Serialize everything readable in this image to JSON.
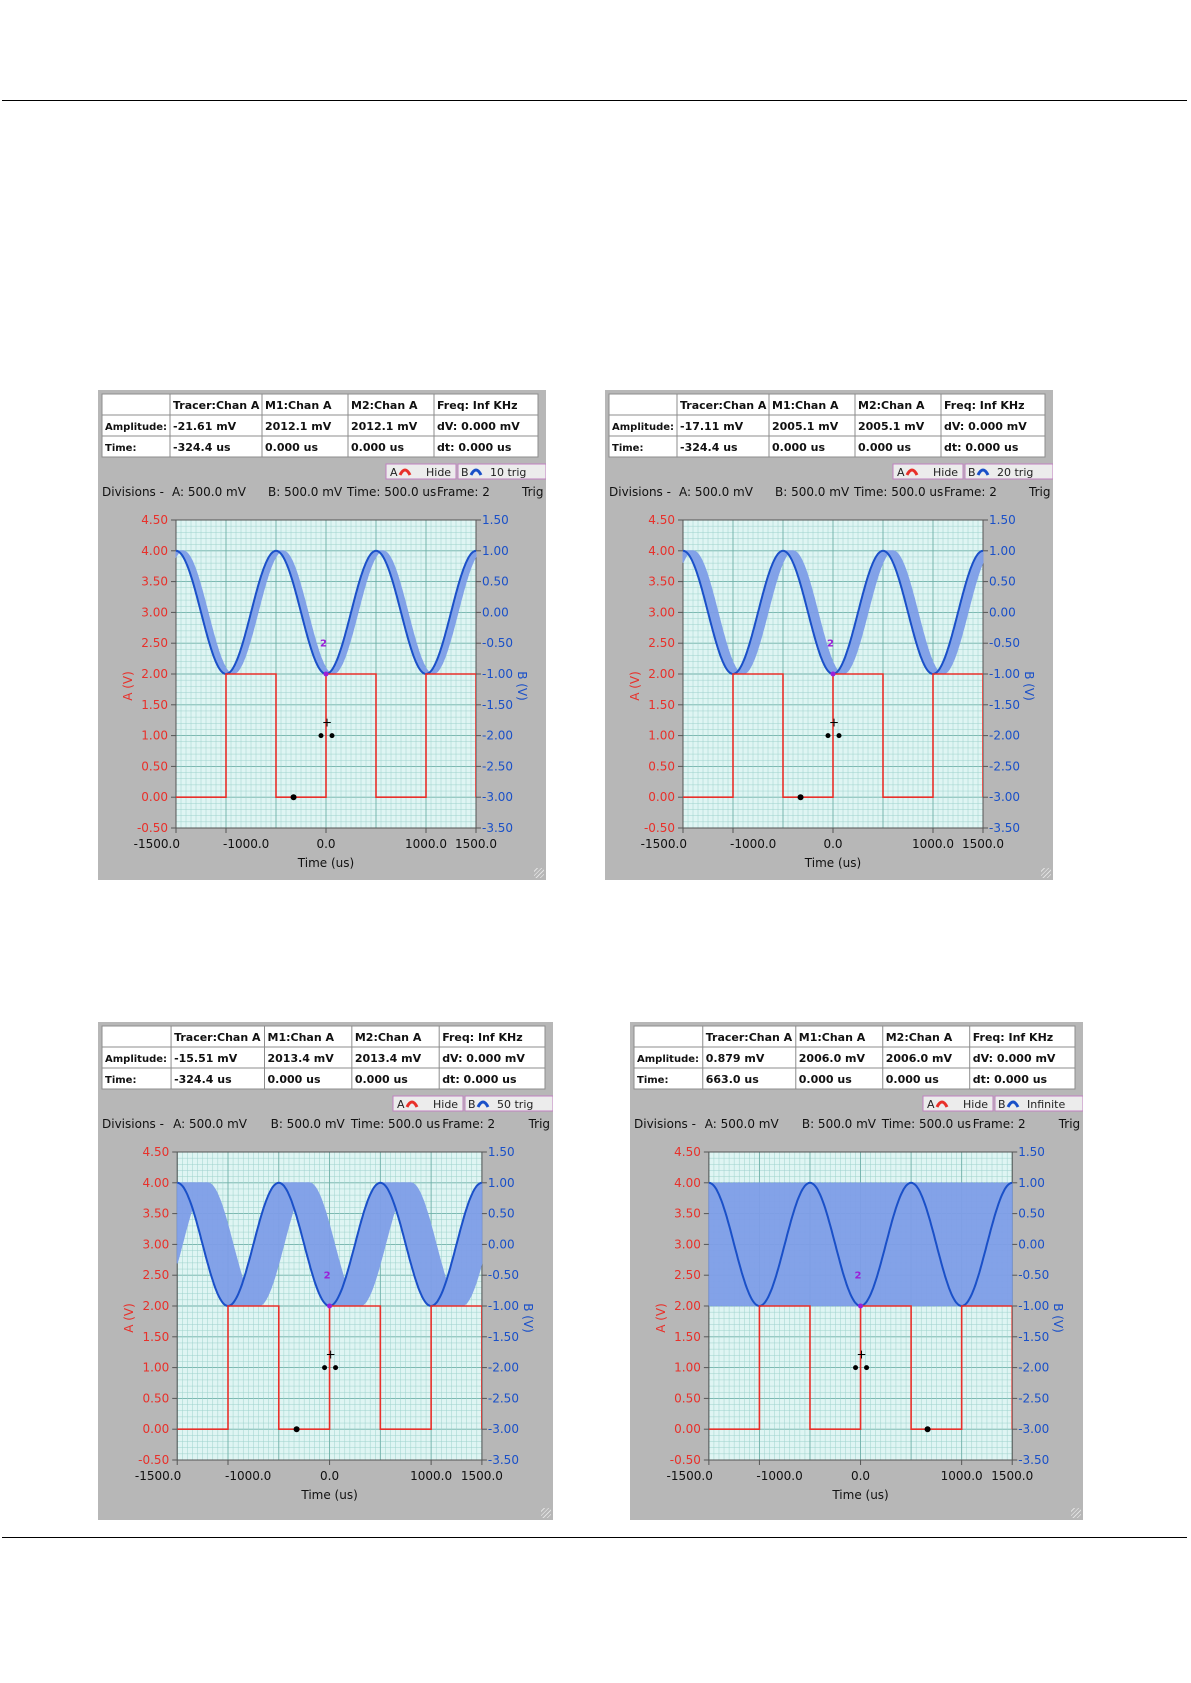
{
  "labels": {
    "tracer_hdr": "Tracer:Chan A",
    "m1_hdr": "M1:Chan A",
    "m2_hdr": "M2:Chan A",
    "freq": "Freq: Inf KHz",
    "amp_label": "Amplitude:",
    "time_label": "Time:",
    "dv": "dV: 0.000 mV",
    "dt": "dt:  0.000 us",
    "legend_a": "A",
    "legend_hide": "Hide",
    "legend_b": "B",
    "div_label": "Divisions -",
    "div_a": "A: 500.0 mV",
    "div_b": "B: 500.0 mV",
    "div_time": "Time: 500.0 us",
    "frame": "Frame: 2",
    "trig": "Trig",
    "xlabel": "Time (us)",
    "ylabel_left": "A (V)",
    "ylabel_right": "B (V)",
    "marker_label": "2",
    "x_ticks": [
      "-1500.0",
      "-1000.0",
      "0.0",
      "1000.0",
      "1500.0"
    ],
    "yl_ticks": [
      "4.50",
      "4.00",
      "3.50",
      "3.00",
      "2.50",
      "2.00",
      "1.50",
      "1.00",
      "0.50",
      "0.00",
      "-0.50"
    ],
    "yr_ticks": [
      "1.50",
      "1.00",
      "0.50",
      "0.00",
      "-0.50",
      "-1.00",
      "-1.50",
      "-2.00",
      "-2.50",
      "-3.00",
      "-3.50"
    ]
  },
  "colors": {
    "panel_bg": "#b7b7b7",
    "plot_bg": "#dff5f3",
    "grid_minor": "#9ed2cc",
    "grid_major": "#6fb0a8",
    "chan_a": "#e8302a",
    "chan_b": "#1a50c8",
    "chan_b_band": "#7f9ee8",
    "marker": "#9a1fd8"
  },
  "panels": [
    {
      "tracer_amp": "-21.61 mV",
      "tracer_time": "-324.4 us",
      "m1_amp": "2012.1 mV",
      "m1_time": "0.000 us",
      "m2_amp": "2012.1 mV",
      "m2_time": "0.000 us",
      "trig_mode": "10 trig"
    },
    {
      "tracer_amp": "-17.11 mV",
      "tracer_time": "-324.4 us",
      "m1_amp": "2005.1 mV",
      "m1_time": "0.000 us",
      "m2_amp": "2005.1 mV",
      "m2_time": "0.000 us",
      "trig_mode": "20 trig"
    },
    {
      "tracer_amp": "-15.51 mV",
      "tracer_time": "-324.4 us",
      "m1_amp": "2013.4 mV",
      "m1_time": "0.000 us",
      "m2_amp": "2013.4 mV",
      "m2_time": "0.000 us",
      "trig_mode": "50 trig"
    },
    {
      "tracer_amp": "0.879 mV",
      "tracer_time": "663.0 us",
      "m1_amp": "2006.0 mV",
      "m1_time": "0.000 us",
      "m2_amp": "2006.0 mV",
      "m2_time": "0.000 us",
      "trig_mode": "Infinite"
    }
  ],
  "chart_data": [
    {
      "type": "line",
      "xlabel": "Time (us)",
      "ylabel": "A (V)",
      "y2label": "B (V)",
      "xlim": [
        -1500,
        1500
      ],
      "ylim": [
        -0.5,
        4.5
      ],
      "y2lim": [
        -3.5,
        1.5
      ],
      "legend": "top-right",
      "grid": true,
      "series": [
        {
          "name": "A",
          "square_high": 2.0,
          "square_low": 0.0,
          "period_us": 1000
        },
        {
          "name": "B",
          "sine_max": 1.0,
          "sine_min": -1.0,
          "period_us": 1000,
          "persistence_spread_us": 70
        }
      ]
    },
    {
      "type": "line",
      "xlabel": "Time (us)",
      "ylabel": "A (V)",
      "y2label": "B (V)",
      "xlim": [
        -1500,
        1500
      ],
      "ylim": [
        -0.5,
        4.5
      ],
      "y2lim": [
        -3.5,
        1.5
      ],
      "legend": "top-right",
      "grid": true,
      "series": [
        {
          "name": "A",
          "square_high": 2.0,
          "square_low": 0.0,
          "period_us": 1000
        },
        {
          "name": "B",
          "sine_max": 1.0,
          "sine_min": -1.0,
          "period_us": 1000,
          "persistence_spread_us": 100
        }
      ]
    },
    {
      "type": "line",
      "xlabel": "Time (us)",
      "ylabel": "A (V)",
      "y2label": "B (V)",
      "xlim": [
        -1500,
        1500
      ],
      "ylim": [
        -0.5,
        4.5
      ],
      "y2lim": [
        -3.5,
        1.5
      ],
      "legend": "top-right",
      "grid": true,
      "series": [
        {
          "name": "A",
          "square_high": 2.0,
          "square_low": 0.0,
          "period_us": 1000
        },
        {
          "name": "B",
          "sine_max": 1.0,
          "sine_min": -1.0,
          "period_us": 1000,
          "persistence_spread_us": 300
        }
      ]
    },
    {
      "type": "line",
      "xlabel": "Time (us)",
      "ylabel": "A (V)",
      "y2label": "B (V)",
      "xlim": [
        -1500,
        1500
      ],
      "ylim": [
        -0.5,
        4.5
      ],
      "y2lim": [
        -3.5,
        1.5
      ],
      "legend": "top-right",
      "grid": true,
      "series": [
        {
          "name": "A",
          "square_high": 2.0,
          "square_low": 0.0,
          "period_us": 1000
        },
        {
          "name": "B",
          "sine_max": 1.0,
          "sine_min": -1.0,
          "period_us": 1000,
          "persistence_spread_us": 1000
        }
      ]
    }
  ]
}
